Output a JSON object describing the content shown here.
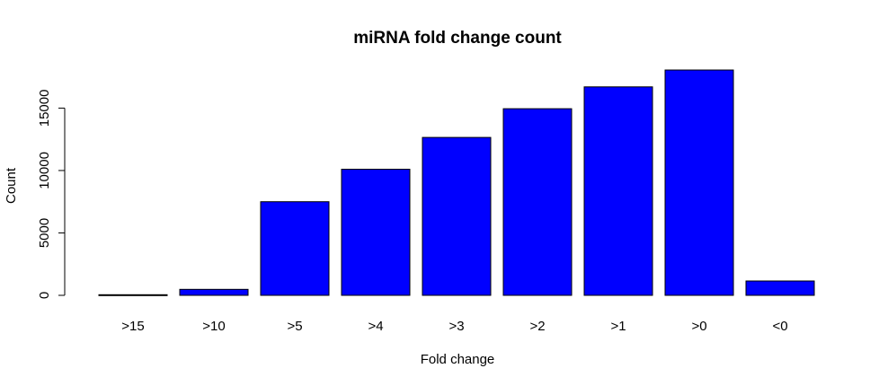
{
  "chart_data": {
    "type": "bar",
    "title": "miRNA fold change count",
    "xlabel": "Fold change",
    "ylabel": "Count",
    "categories": [
      ">15",
      ">10",
      ">5",
      ">4",
      ">3",
      ">2",
      ">1",
      ">0",
      "<0"
    ],
    "values": [
      50,
      480,
      7500,
      10100,
      12650,
      14950,
      16700,
      18050,
      1150
    ],
    "ylim": [
      0,
      18050
    ],
    "yticks": [
      0,
      5000,
      10000,
      15000
    ],
    "grid": false,
    "legend": "none",
    "bar_color": "#0000ff",
    "bar_border_color": "#000000"
  }
}
